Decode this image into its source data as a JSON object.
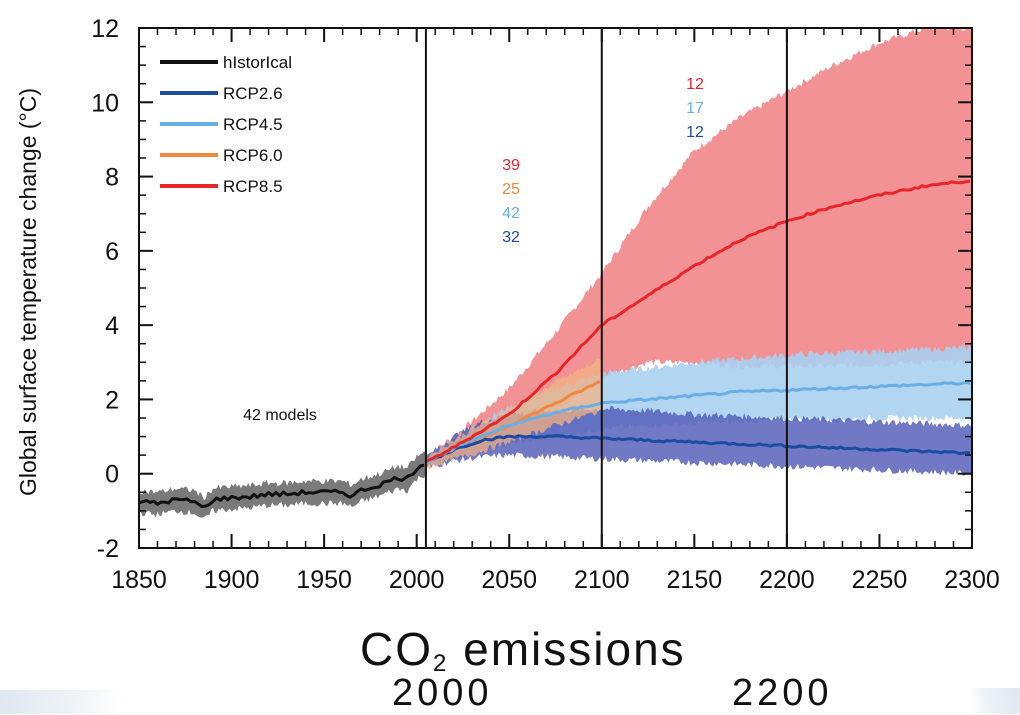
{
  "chart_data": {
    "type": "line",
    "title": "",
    "xlabel": "",
    "ylabel": "Global surface temperature change (°C)",
    "xlim": [
      1850,
      2300
    ],
    "ylim": [
      -2,
      12
    ],
    "x_ticks": [
      "1850",
      "1900",
      "1950",
      "2000",
      "2050",
      "2100",
      "2150",
      "2200",
      "2250",
      "2300"
    ],
    "y_ticks": [
      "-2",
      "0",
      "2",
      "4",
      "6",
      "8",
      "10",
      "12"
    ],
    "vertical_lines": [
      2005,
      2100,
      2200
    ],
    "legend": {
      "position": "top-left"
    },
    "series": [
      {
        "name": "hIstorIcal",
        "color": "#111111",
        "band_color": "#7a7a7a",
        "x": [
          1850,
          1860,
          1870,
          1880,
          1885,
          1890,
          1900,
          1910,
          1920,
          1930,
          1940,
          1950,
          1960,
          1965,
          1970,
          1980,
          1990,
          1995,
          2000,
          2005
        ],
        "mean": [
          -0.75,
          -0.8,
          -0.7,
          -0.75,
          -0.95,
          -0.7,
          -0.65,
          -0.62,
          -0.55,
          -0.55,
          -0.5,
          -0.5,
          -0.5,
          -0.6,
          -0.45,
          -0.3,
          -0.1,
          -0.15,
          0.15,
          0.3
        ],
        "low": [
          -1.05,
          -1.1,
          -1.0,
          -1.05,
          -1.25,
          -1.0,
          -0.95,
          -0.92,
          -0.85,
          -0.85,
          -0.8,
          -0.8,
          -0.8,
          -0.9,
          -0.75,
          -0.6,
          -0.4,
          -0.45,
          -0.15,
          0.0
        ],
        "high": [
          -0.45,
          -0.5,
          -0.4,
          -0.45,
          -0.65,
          -0.4,
          -0.35,
          -0.32,
          -0.25,
          -0.25,
          -0.2,
          -0.2,
          -0.2,
          -0.3,
          -0.15,
          0.0,
          0.2,
          0.15,
          0.45,
          0.6
        ]
      },
      {
        "name": "RCP2.6",
        "color": "#1a4c9f",
        "band_color": "#4d57b5",
        "band_opacity": 0.8,
        "x": [
          2005,
          2020,
          2035,
          2050,
          2075,
          2100,
          2125,
          2150,
          2175,
          2200,
          2225,
          2250,
          2275,
          2300
        ],
        "mean": [
          0.3,
          0.65,
          0.9,
          1.0,
          1.0,
          0.95,
          0.9,
          0.85,
          0.8,
          0.75,
          0.7,
          0.65,
          0.6,
          0.55
        ],
        "low": [
          0.15,
          0.35,
          0.45,
          0.5,
          0.45,
          0.4,
          0.35,
          0.3,
          0.25,
          0.2,
          0.15,
          0.1,
          0.05,
          0.0
        ],
        "high": [
          0.45,
          1.0,
          1.4,
          1.6,
          1.7,
          1.75,
          1.7,
          1.6,
          1.55,
          1.5,
          1.45,
          1.4,
          1.35,
          1.3
        ]
      },
      {
        "name": "RCP4.5",
        "color": "#6aaee6",
        "band_color": "#aad0f0",
        "band_opacity": 0.9,
        "x": [
          2005,
          2025,
          2050,
          2075,
          2100,
          2125,
          2150,
          2175,
          2200,
          2225,
          2250,
          2275,
          2300
        ],
        "mean": [
          0.3,
          0.8,
          1.3,
          1.65,
          1.9,
          2.0,
          2.1,
          2.2,
          2.25,
          2.3,
          2.35,
          2.4,
          2.45
        ],
        "low": [
          0.15,
          0.5,
          0.8,
          1.0,
          1.2,
          1.3,
          1.35,
          1.4,
          1.45,
          1.45,
          1.5,
          1.5,
          1.5
        ],
        "high": [
          0.45,
          1.1,
          1.8,
          2.3,
          2.7,
          2.85,
          3.0,
          3.1,
          3.2,
          3.25,
          3.3,
          3.35,
          3.4
        ]
      },
      {
        "name": "RCP6.0",
        "color": "#f08840",
        "band_color": "#f3b183",
        "band_opacity": 0.75,
        "x": [
          2005,
          2025,
          2050,
          2075,
          2100
        ],
        "mean": [
          0.3,
          0.75,
          1.3,
          1.9,
          2.5
        ],
        "low": [
          0.15,
          0.45,
          0.85,
          1.3,
          1.7
        ],
        "high": [
          0.45,
          1.05,
          1.75,
          2.45,
          3.1
        ]
      },
      {
        "name": "RCP8.5",
        "color": "#e8262a",
        "band_color": "#ef7a7e",
        "band_opacity": 0.82,
        "x": [
          2005,
          2025,
          2050,
          2075,
          2100,
          2125,
          2150,
          2175,
          2200,
          2225,
          2250,
          2275,
          2300
        ],
        "mean": [
          0.3,
          0.85,
          1.6,
          2.7,
          4.0,
          4.8,
          5.6,
          6.3,
          6.8,
          7.2,
          7.5,
          7.75,
          7.9
        ],
        "low": [
          0.15,
          0.55,
          1.0,
          1.7,
          2.6,
          3.0,
          3.0,
          2.9,
          2.9,
          2.9,
          2.95,
          3.0,
          3.0
        ],
        "high": [
          0.45,
          1.2,
          2.3,
          3.8,
          5.4,
          7.2,
          8.7,
          9.6,
          10.3,
          11.0,
          11.6,
          12.0,
          12.0
        ]
      }
    ],
    "annotations": [
      {
        "text": "42 models",
        "x": 2005,
        "y": 1.6
      }
    ],
    "model_counts": {
      "2006-2100": [
        {
          "series": "RCP8.5",
          "value": "39"
        },
        {
          "series": "RCP6.0",
          "value": "25"
        },
        {
          "series": "RCP4.5",
          "value": "42"
        },
        {
          "series": "RCP2.6",
          "value": "32"
        }
      ],
      "2100-2300": [
        {
          "series": "RCP8.5",
          "value": "12"
        },
        {
          "series": "RCP4.5",
          "value": "17"
        },
        {
          "series": "RCP2.6",
          "value": "12"
        }
      ]
    }
  },
  "caption": {
    "title_main": "CO",
    "title_sub": "2",
    "title_rest": " emissions",
    "years": [
      "2000",
      "2200"
    ]
  }
}
